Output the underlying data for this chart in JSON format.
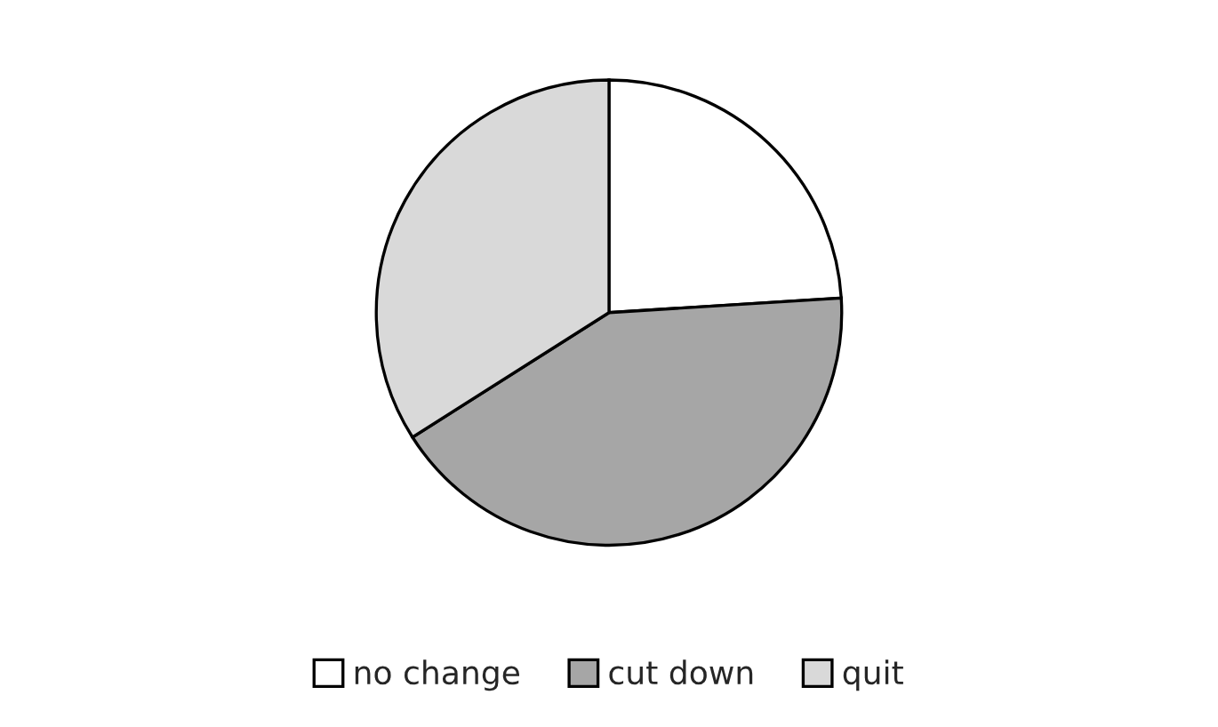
{
  "chart_data": {
    "type": "pie",
    "categories": [
      "no change",
      "cut down",
      "quit"
    ],
    "values": [
      24,
      42,
      34
    ],
    "colors": [
      "#ffffff",
      "#a6a6a6",
      "#d9d9d9"
    ],
    "legend": "bottom"
  }
}
